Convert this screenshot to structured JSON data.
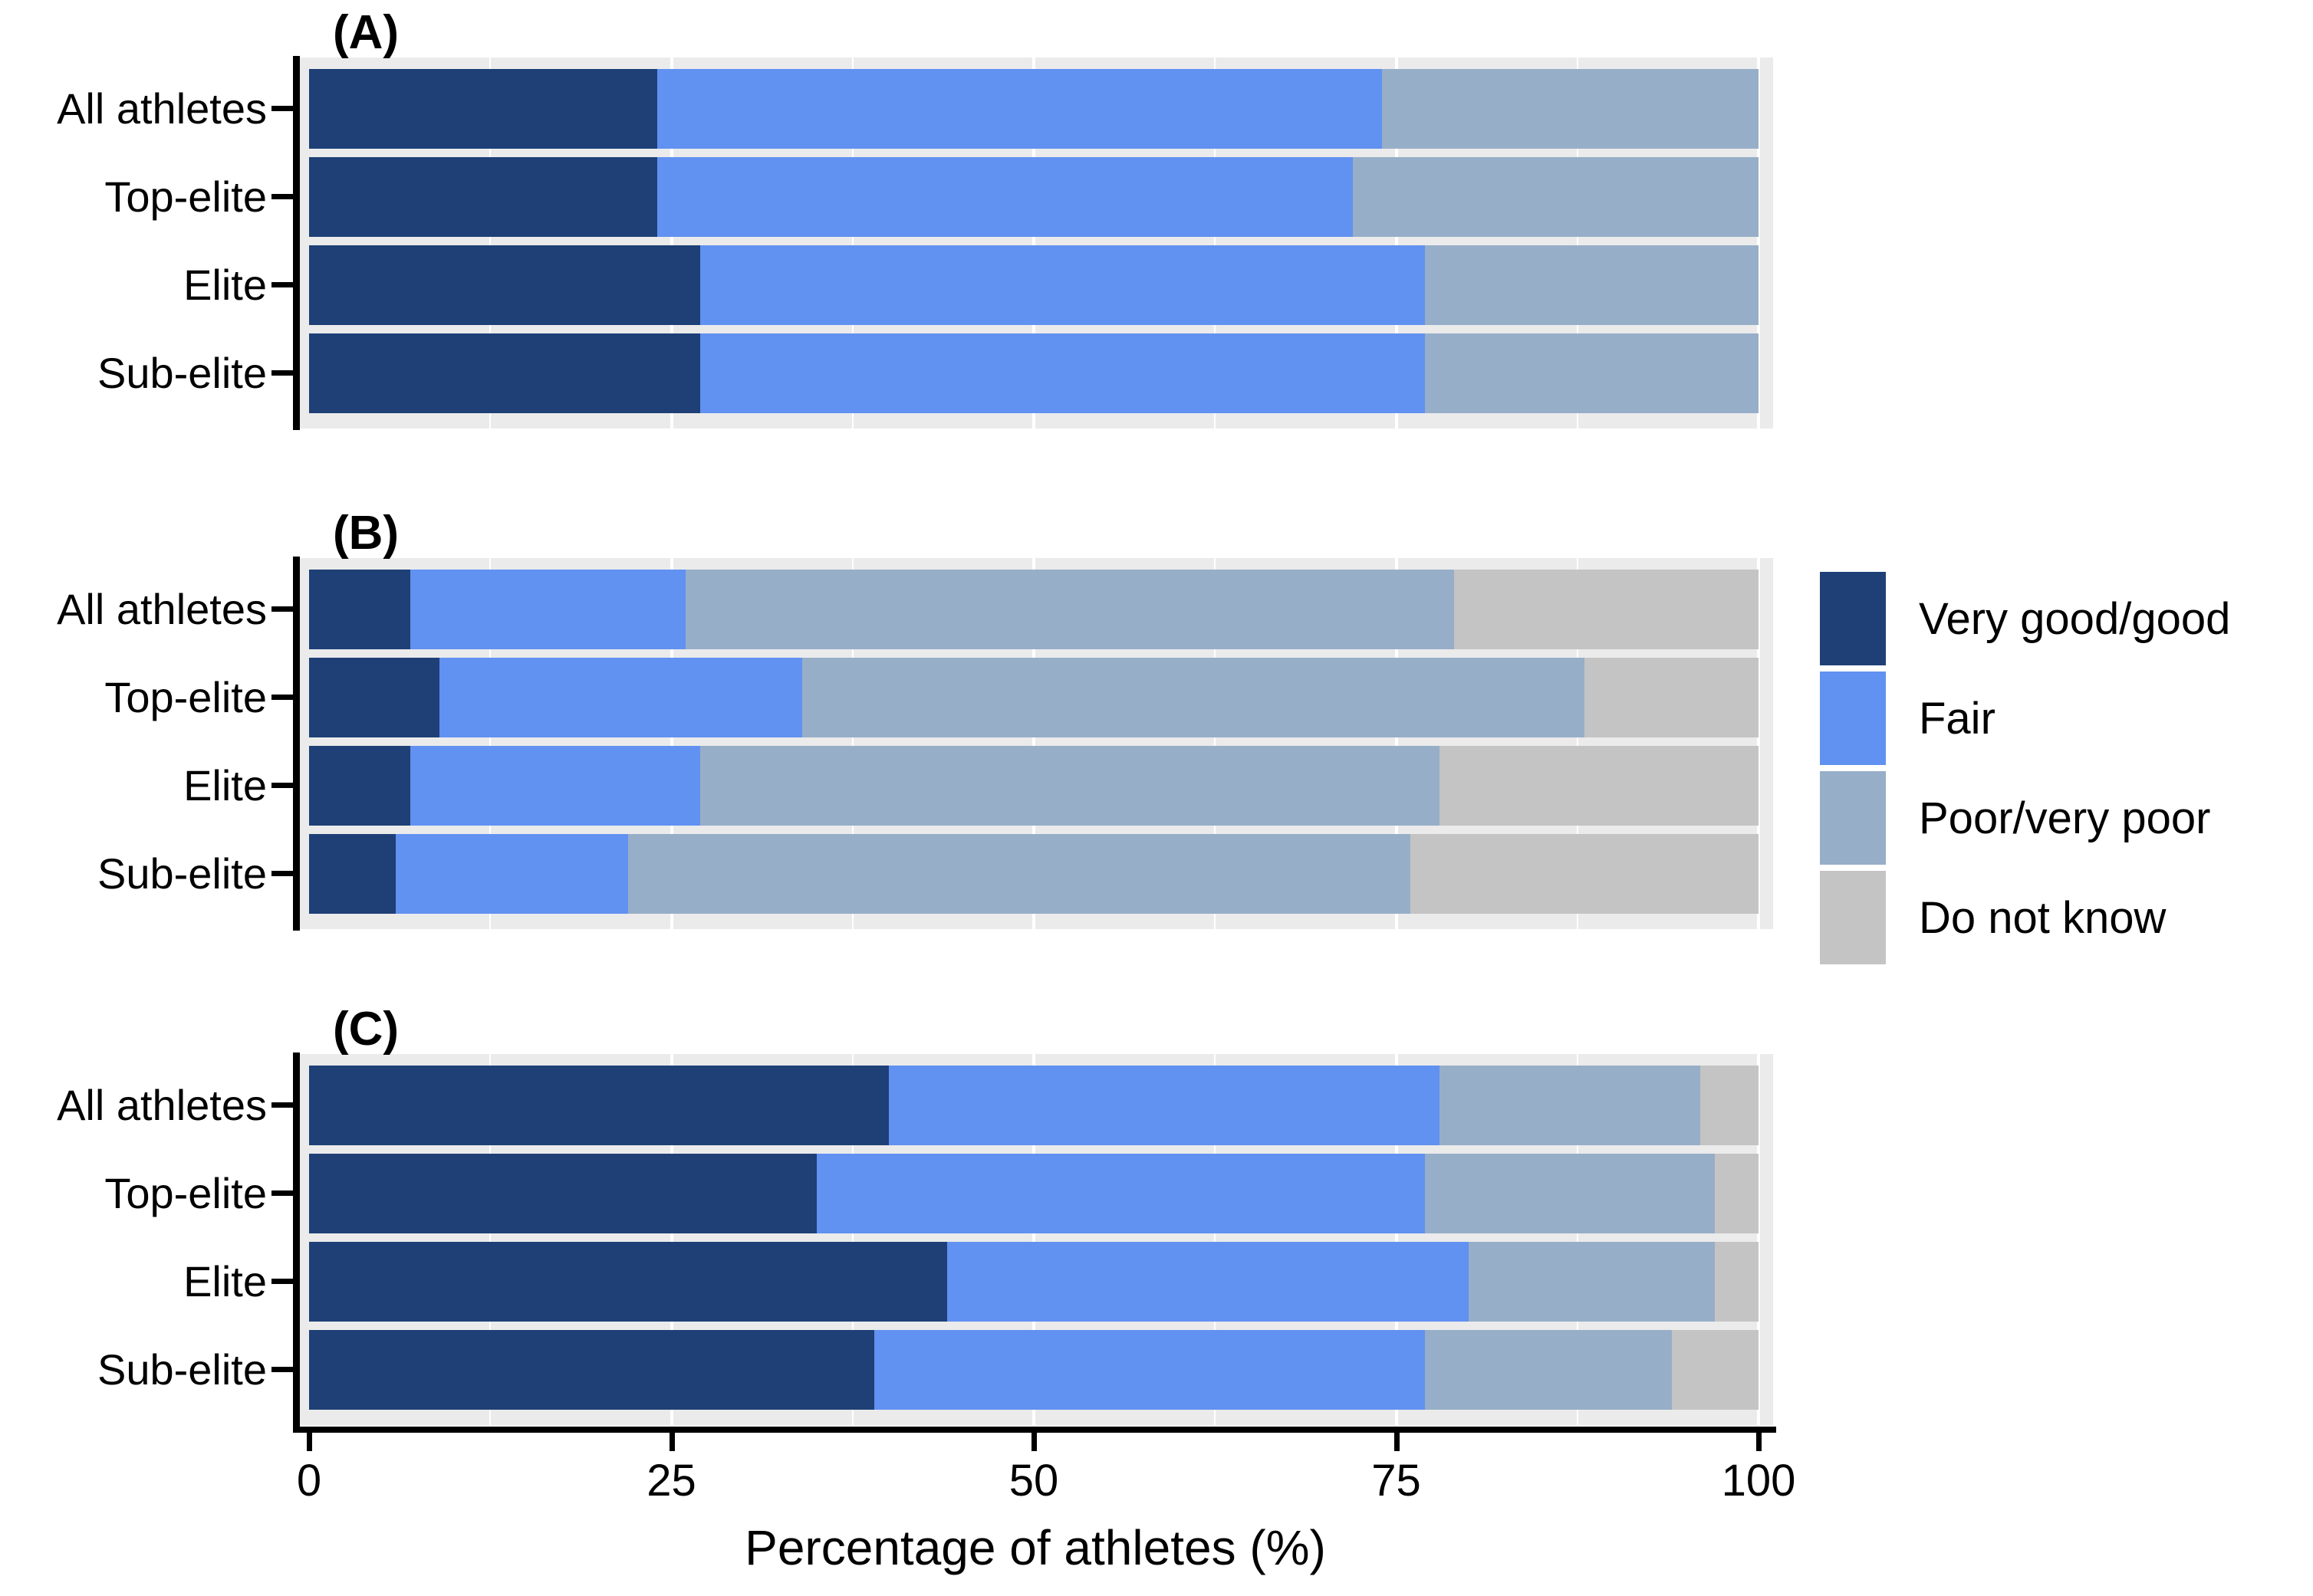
{
  "figure": {
    "x_axis_title": "Percentage of athletes (%)",
    "x_tick_labels": [
      "0",
      "25",
      "50",
      "75",
      "100"
    ],
    "x_tick_values": [
      0,
      25,
      50,
      75,
      100
    ],
    "minor_grid_values": [
      12.5,
      37.5,
      62.5,
      87.5
    ],
    "categories": [
      "All athletes",
      "Top-elite",
      "Elite",
      "Sub-elite"
    ],
    "panel_background": "#ebebeb",
    "gridline_color": "#ffffff",
    "axis_color": "#000000"
  },
  "legend": {
    "position": "right",
    "items": [
      {
        "id": "very-good-good",
        "label": "Very good/good",
        "color": "#1e4076"
      },
      {
        "id": "fair",
        "label": "Fair",
        "color": "#6191f1"
      },
      {
        "id": "poor-very-poor",
        "label": "Poor/very poor",
        "color": "#97aec8"
      },
      {
        "id": "do-not-know",
        "label": "Do not know",
        "color": "#c4c4c4"
      }
    ]
  },
  "chart_data": [
    {
      "type": "bar",
      "stacked": true,
      "orientation": "horizontal",
      "panel_label": "(A)",
      "categories": [
        "All athletes",
        "Top-elite",
        "Elite",
        "Sub-elite"
      ],
      "xlim": [
        0,
        100
      ],
      "grid": true,
      "series": [
        {
          "name": "Very good/good",
          "values": [
            24,
            24,
            27,
            27
          ]
        },
        {
          "name": "Fair",
          "values": [
            50,
            48,
            50,
            50
          ]
        },
        {
          "name": "Poor/very poor",
          "values": [
            26,
            28,
            23,
            23
          ]
        },
        {
          "name": "Do not know",
          "values": [
            0,
            0,
            0,
            0
          ]
        }
      ]
    },
    {
      "type": "bar",
      "stacked": true,
      "orientation": "horizontal",
      "panel_label": "(B)",
      "categories": [
        "All athletes",
        "Top-elite",
        "Elite",
        "Sub-elite"
      ],
      "xlim": [
        0,
        100
      ],
      "grid": true,
      "series": [
        {
          "name": "Very good/good",
          "values": [
            7,
            9,
            7,
            6
          ]
        },
        {
          "name": "Fair",
          "values": [
            19,
            25,
            20,
            16
          ]
        },
        {
          "name": "Poor/very poor",
          "values": [
            53,
            54,
            51,
            54
          ]
        },
        {
          "name": "Do not know",
          "values": [
            21,
            12,
            22,
            24
          ]
        }
      ]
    },
    {
      "type": "bar",
      "stacked": true,
      "orientation": "horizontal",
      "panel_label": "(C)",
      "categories": [
        "All athletes",
        "Top-elite",
        "Elite",
        "Sub-elite"
      ],
      "xlim": [
        0,
        100
      ],
      "grid": true,
      "series": [
        {
          "name": "Very good/good",
          "values": [
            40,
            35,
            44,
            39
          ]
        },
        {
          "name": "Fair",
          "values": [
            38,
            42,
            36,
            38
          ]
        },
        {
          "name": "Poor/very poor",
          "values": [
            18,
            20,
            17,
            17
          ]
        },
        {
          "name": "Do not know",
          "values": [
            4,
            3,
            3,
            6
          ]
        }
      ]
    }
  ]
}
